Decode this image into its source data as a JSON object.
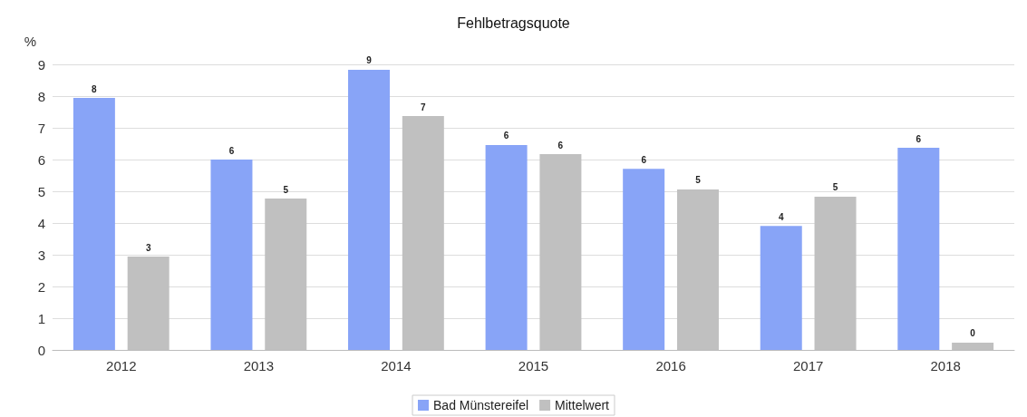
{
  "chart_data": {
    "type": "bar",
    "title": "Fehlbetragsquote",
    "ylabel": "%",
    "categories": [
      "2012",
      "2013",
      "2014",
      "2015",
      "2016",
      "2017",
      "2018"
    ],
    "series": [
      {
        "name": "Bad Münstereifel",
        "color": "#88a4f7",
        "values": [
          7.94,
          6.0,
          8.83,
          6.46,
          5.71,
          3.91,
          6.37
        ],
        "value_labels": [
          "8",
          "6",
          "9",
          "6",
          "6",
          "4",
          "6"
        ]
      },
      {
        "name": "Mittelwert",
        "color": "#c0c0c0",
        "values": [
          2.94,
          4.77,
          7.37,
          6.17,
          5.06,
          4.83,
          0.23
        ],
        "value_labels": [
          "3",
          "5",
          "7",
          "6",
          "5",
          "5",
          "0"
        ]
      }
    ],
    "ylim": [
      0,
      9
    ],
    "yticks": [
      0,
      1,
      2,
      3,
      4,
      5,
      6,
      7,
      8,
      9
    ],
    "grid": "y",
    "legend": "bottom"
  }
}
